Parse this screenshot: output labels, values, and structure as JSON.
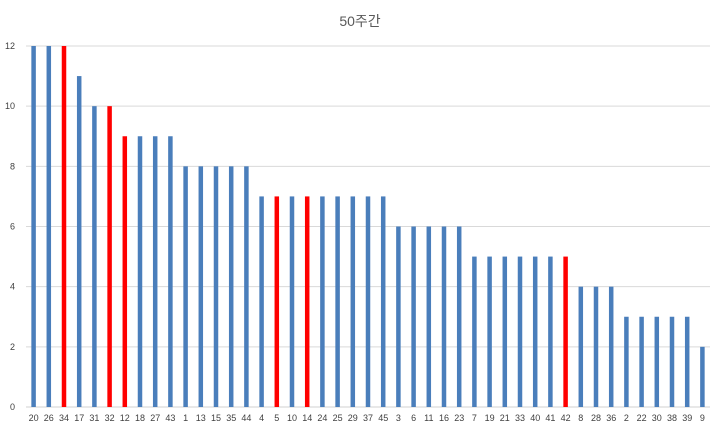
{
  "chart_data": {
    "type": "bar",
    "title": "50주간",
    "xlabel": "",
    "ylabel": "",
    "ylim": [
      0,
      12
    ],
    "yticks": [
      0,
      2,
      4,
      6,
      8,
      10,
      12
    ],
    "grid": true,
    "legend": "none",
    "colors": {
      "default": "#4a7ebb",
      "highlight": "#ff0000",
      "grid": "#d9d9d9"
    },
    "categories": [
      "20",
      "26",
      "34",
      "17",
      "31",
      "32",
      "12",
      "18",
      "27",
      "43",
      "1",
      "13",
      "15",
      "35",
      "44",
      "4",
      "5",
      "10",
      "14",
      "24",
      "25",
      "29",
      "37",
      "45",
      "3",
      "6",
      "11",
      "16",
      "23",
      "7",
      "19",
      "21",
      "33",
      "40",
      "41",
      "42",
      "8",
      "28",
      "36",
      "2",
      "22",
      "30",
      "38",
      "39",
      "9"
    ],
    "values": [
      12,
      12,
      12,
      11,
      10,
      10,
      9,
      9,
      9,
      9,
      8,
      8,
      8,
      8,
      8,
      7,
      7,
      7,
      7,
      7,
      7,
      7,
      7,
      7,
      6,
      6,
      6,
      6,
      6,
      5,
      5,
      5,
      5,
      5,
      5,
      5,
      4,
      4,
      4,
      3,
      3,
      3,
      3,
      3,
      2
    ],
    "highlighted": [
      "34",
      "32",
      "12",
      "5",
      "14",
      "42"
    ]
  }
}
